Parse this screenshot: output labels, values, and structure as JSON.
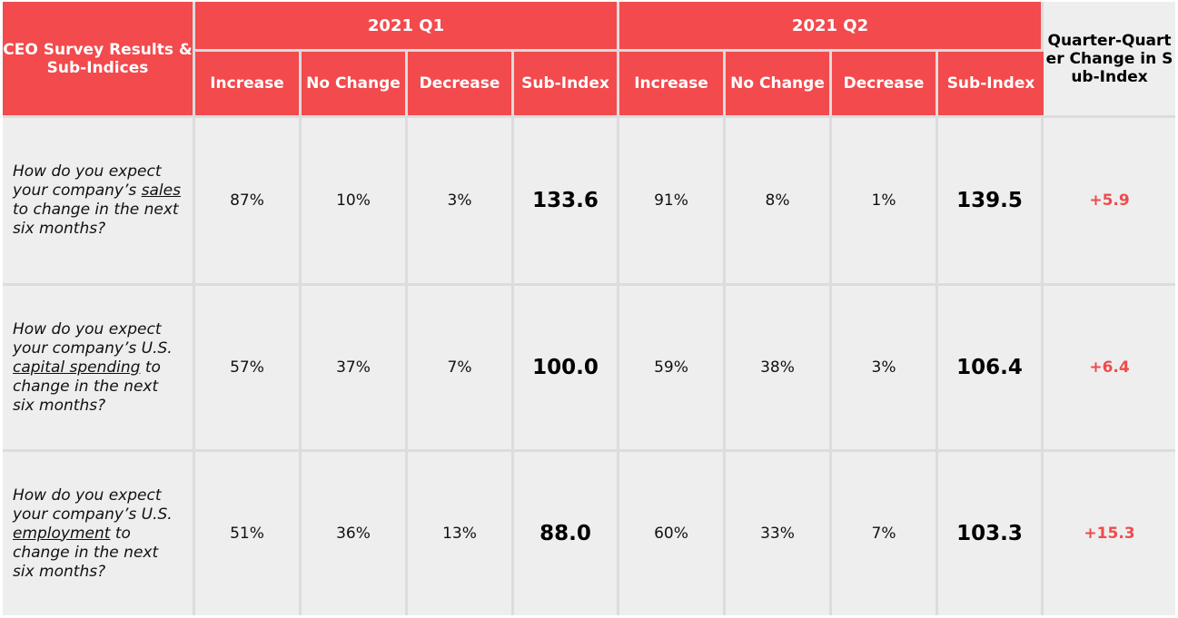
{
  "chart_data": {
    "type": "table",
    "header": {
      "corner": "CEO Survey Results & Sub-Indices",
      "groups": [
        "2021 Q1",
        "2021 Q2"
      ],
      "sub_columns": [
        "Increase",
        "No Change",
        "Decrease",
        "Sub-Index"
      ],
      "change_column": "Quarter-Quarter Change in Sub-Index"
    },
    "rows": [
      {
        "q_before": "How do you expect your company’s ",
        "q_keyword": "sales",
        "q_after": " to change in the next six months?",
        "q1": {
          "increase": "87%",
          "no_change": "10%",
          "decrease": "3%",
          "sub_index": "133.6"
        },
        "q2": {
          "increase": "91%",
          "no_change": "8%",
          "decrease": "1%",
          "sub_index": "139.5"
        },
        "change": "+5.9"
      },
      {
        "q_before": "How do you expect your company’s U.S. ",
        "q_keyword": "capital spending",
        "q_after": " to change in the next six months?",
        "q1": {
          "increase": "57%",
          "no_change": "37%",
          "decrease": "7%",
          "sub_index": "100.0"
        },
        "q2": {
          "increase": "59%",
          "no_change": "38%",
          "decrease": "3%",
          "sub_index": "106.4"
        },
        "change": "+6.4"
      },
      {
        "q_before": "How do you expect your company’s U.S. ",
        "q_keyword": "employment",
        "q_after": " to change in the next six months?",
        "q1": {
          "increase": "51%",
          "no_change": "36%",
          "decrease": "13%",
          "sub_index": "88.0"
        },
        "q2": {
          "increase": "60%",
          "no_change": "33%",
          "decrease": "7%",
          "sub_index": "103.3"
        },
        "change": "+15.3"
      }
    ]
  },
  "colors": {
    "header_red": "#f24a4d",
    "change_red": "#ef4b4c",
    "cell_bg": "#eeeeee",
    "grid": "#dcdcdc"
  }
}
